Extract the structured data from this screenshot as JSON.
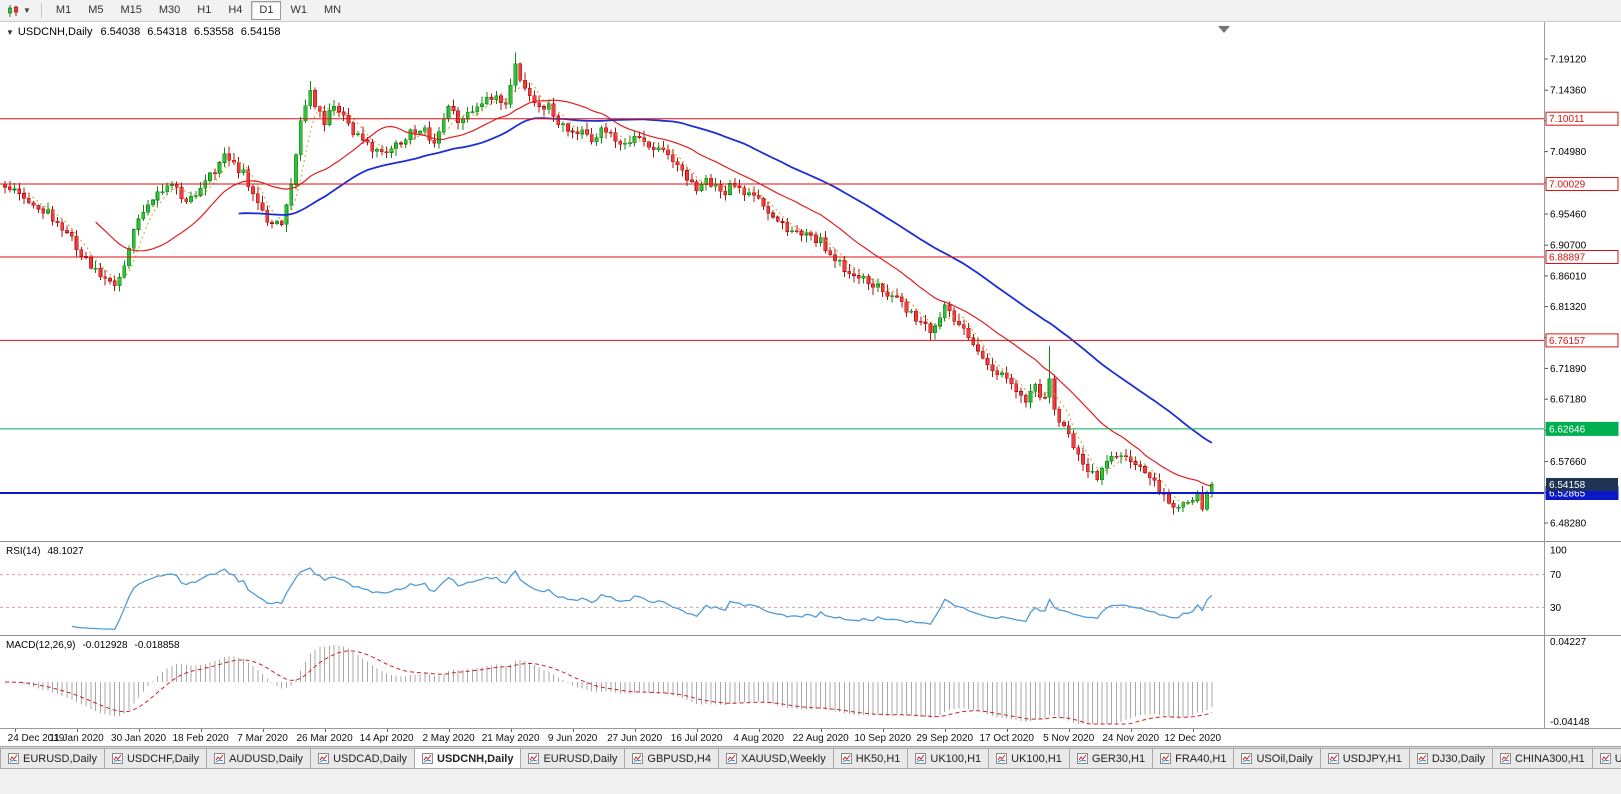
{
  "toolbar": {
    "chart_type_icon": "candlestick-chart-icon",
    "timeframes": [
      "M1",
      "M5",
      "M15",
      "M30",
      "H1",
      "H4",
      "D1",
      "W1",
      "MN"
    ],
    "active_timeframe": "D1"
  },
  "main_chart": {
    "header": {
      "expander": "▼",
      "symbol": "USDCNH,Daily",
      "open": "6.54038",
      "high": "6.54318",
      "low": "6.53558",
      "close": "6.54158"
    },
    "axis_ticks": [
      7.1912,
      7.1436,
      7.0967,
      7.0498,
      7.0022,
      6.9546,
      6.907,
      6.8601,
      6.8132,
      6.7661,
      6.7189,
      6.6718,
      6.6242,
      6.5766,
      6.5297,
      6.4828
    ],
    "h_lines": [
      {
        "price": 7.10011,
        "label": "7.10011",
        "color": "#dd1111",
        "style": "outline",
        "width": 1
      },
      {
        "price": 7.00029,
        "label": "7.00029",
        "color": "#dd1111",
        "style": "outline",
        "width": 1
      },
      {
        "price": 6.88897,
        "label": "6.88897",
        "color": "#dd1111",
        "style": "outline",
        "width": 1
      },
      {
        "price": 6.76157,
        "label": "6.76157",
        "color": "#dd1111",
        "style": "outline",
        "width": 1
      },
      {
        "price": 6.62646,
        "label": "6.62646",
        "color": "#00b050",
        "style": "solid",
        "width": 1
      },
      {
        "price": 6.52865,
        "label": "6.52865",
        "color": "#0a18c8",
        "style": "solid",
        "width": 2
      }
    ],
    "current_price": {
      "label": "6.54158",
      "value": 6.54158,
      "bg": "#1f3455"
    }
  },
  "rsi_panel": {
    "title": "RSI(14)",
    "value": "48.1027",
    "period": 14,
    "levels": [
      70,
      30
    ],
    "axis_labels": [
      100,
      70,
      30
    ],
    "line_color": "#4f9bd9"
  },
  "macd_panel": {
    "title": "MACD(12,26,9)",
    "main_value": "-0.012928",
    "signal_value": "-0.018858",
    "axis_top": "0.04227",
    "axis_bottom": "-0.04148",
    "fast": 12,
    "slow": 26,
    "signal": 9
  },
  "tabs": {
    "active_index": 4,
    "items": [
      "EURUSD,Daily",
      "USDCHF,Daily",
      "AUDUSD,Daily",
      "USDCAD,Daily",
      "USDCNH,Daily",
      "EURUSD,Daily",
      "GBPUSD,H4",
      "XAUUSD,Weekly",
      "HK50,H1",
      "UK100,H1",
      "UK100,H1",
      "GER30,H1",
      "FRA40,H1",
      "USOil,Daily",
      "USDJPY,H1",
      "DJ30,Daily",
      "CHINA300,H1",
      "U"
    ]
  },
  "chart_data": {
    "type": "candlestick",
    "title": "USDCNH Daily",
    "bars": 254,
    "ylim": [
      6.4569,
      7.2446
    ],
    "x_labels": [
      "24 Dec 2019",
      "11 Jan 2020",
      "30 Jan 2020",
      "18 Feb 2020",
      "7 Mar 2020",
      "26 Mar 2020",
      "14 Apr 2020",
      "2 May 2020",
      "21 May 2020",
      "9 Jun 2020",
      "27 Jun 2020",
      "16 Jul 2020",
      "4 Aug 2020",
      "22 Aug 2020",
      "10 Sep 2020",
      "29 Sep 2020",
      "17 Oct 2020",
      "5 Nov 2020",
      "24 Nov 2020",
      "12 Dec 2020"
    ],
    "first_label_bar": 2,
    "label_every": 13,
    "close_anchors": [
      [
        0,
        6.996
      ],
      [
        4,
        6.978
      ],
      [
        8,
        6.962
      ],
      [
        12,
        6.936
      ],
      [
        15,
        6.906
      ],
      [
        18,
        6.876
      ],
      [
        21,
        6.852
      ],
      [
        23,
        6.848
      ],
      [
        25,
        6.874
      ],
      [
        27,
        6.926
      ],
      [
        29,
        6.962
      ],
      [
        32,
        6.984
      ],
      [
        34,
        7.002
      ],
      [
        36,
        6.992
      ],
      [
        38,
        6.976
      ],
      [
        41,
        6.992
      ],
      [
        44,
        7.022
      ],
      [
        46,
        7.044
      ],
      [
        48,
        7.03
      ],
      [
        50,
        7.016
      ],
      [
        52,
        6.986
      ],
      [
        54,
        6.954
      ],
      [
        56,
        6.934
      ],
      [
        58,
        6.942
      ],
      [
        60,
        7.0
      ],
      [
        62,
        7.092
      ],
      [
        64,
        7.15
      ],
      [
        65,
        7.12
      ],
      [
        67,
        7.096
      ],
      [
        69,
        7.118
      ],
      [
        71,
        7.106
      ],
      [
        73,
        7.08
      ],
      [
        75,
        7.064
      ],
      [
        78,
        7.05
      ],
      [
        80,
        7.044
      ],
      [
        82,
        7.06
      ],
      [
        84,
        7.074
      ],
      [
        86,
        7.084
      ],
      [
        88,
        7.08
      ],
      [
        90,
        7.064
      ],
      [
        93,
        7.122
      ],
      [
        95,
        7.1
      ],
      [
        97,
        7.11
      ],
      [
        99,
        7.12
      ],
      [
        101,
        7.13
      ],
      [
        103,
        7.134
      ],
      [
        105,
        7.126
      ],
      [
        107,
        7.178
      ],
      [
        108,
        7.156
      ],
      [
        110,
        7.13
      ],
      [
        112,
        7.114
      ],
      [
        114,
        7.122
      ],
      [
        116,
        7.094
      ],
      [
        119,
        7.074
      ],
      [
        121,
        7.08
      ],
      [
        123,
        7.07
      ],
      [
        125,
        7.084
      ],
      [
        127,
        7.074
      ],
      [
        129,
        7.06
      ],
      [
        132,
        7.074
      ],
      [
        134,
        7.064
      ],
      [
        136,
        7.054
      ],
      [
        138,
        7.05
      ],
      [
        140,
        7.04
      ],
      [
        142,
        7.02
      ],
      [
        145,
        6.994
      ],
      [
        147,
        7.004
      ],
      [
        149,
        6.997
      ],
      [
        151,
        6.99
      ],
      [
        153,
        7.0
      ],
      [
        155,
        6.987
      ],
      [
        158,
        6.974
      ],
      [
        160,
        6.957
      ],
      [
        162,
        6.947
      ],
      [
        164,
        6.934
      ],
      [
        166,
        6.927
      ],
      [
        169,
        6.92
      ],
      [
        171,
        6.914
      ],
      [
        173,
        6.894
      ],
      [
        175,
        6.88
      ],
      [
        177,
        6.864
      ],
      [
        179,
        6.857
      ],
      [
        182,
        6.847
      ],
      [
        184,
        6.84
      ],
      [
        186,
        6.83
      ],
      [
        188,
        6.817
      ],
      [
        190,
        6.8
      ],
      [
        192,
        6.787
      ],
      [
        194,
        6.777
      ],
      [
        197,
        6.814
      ],
      [
        199,
        6.794
      ],
      [
        201,
        6.774
      ],
      [
        203,
        6.754
      ],
      [
        205,
        6.74
      ],
      [
        207,
        6.72
      ],
      [
        210,
        6.702
      ],
      [
        212,
        6.69
      ],
      [
        214,
        6.674
      ],
      [
        216,
        6.69
      ],
      [
        218,
        6.672
      ],
      [
        220,
        6.652
      ],
      [
        223,
        6.622
      ],
      [
        225,
        6.586
      ],
      [
        227,
        6.563
      ],
      [
        229,
        6.553
      ],
      [
        231,
        6.573
      ],
      [
        233,
        6.589
      ],
      [
        236,
        6.579
      ],
      [
        238,
        6.569
      ],
      [
        240,
        6.553
      ],
      [
        242,
        6.533
      ],
      [
        244,
        6.516
      ],
      [
        246,
        6.506
      ],
      [
        248,
        6.513
      ],
      [
        250,
        6.523
      ],
      [
        251,
        6.509
      ],
      [
        252,
        6.533
      ],
      [
        253,
        6.5416
      ]
    ],
    "spikes": [
      [
        64,
        0.014,
        0
      ],
      [
        107,
        0.017,
        0
      ],
      [
        219,
        0.05,
        0.045
      ]
    ],
    "last_close": 6.5416,
    "overlays": [
      {
        "name": "SMA5",
        "color": "#c9a227",
        "dash": true
      },
      {
        "name": "SMA20",
        "color": "#e02020",
        "dash": false
      },
      {
        "name": "SMA50",
        "color": "#1c2fd6",
        "dash": false
      }
    ],
    "colors": {
      "up": "#2fbf3a",
      "up_border": "#0e8a14",
      "down": "#ef3c3c",
      "down_border": "#b01010",
      "hist": "#a8a8a8",
      "signal": "#d02020"
    }
  }
}
